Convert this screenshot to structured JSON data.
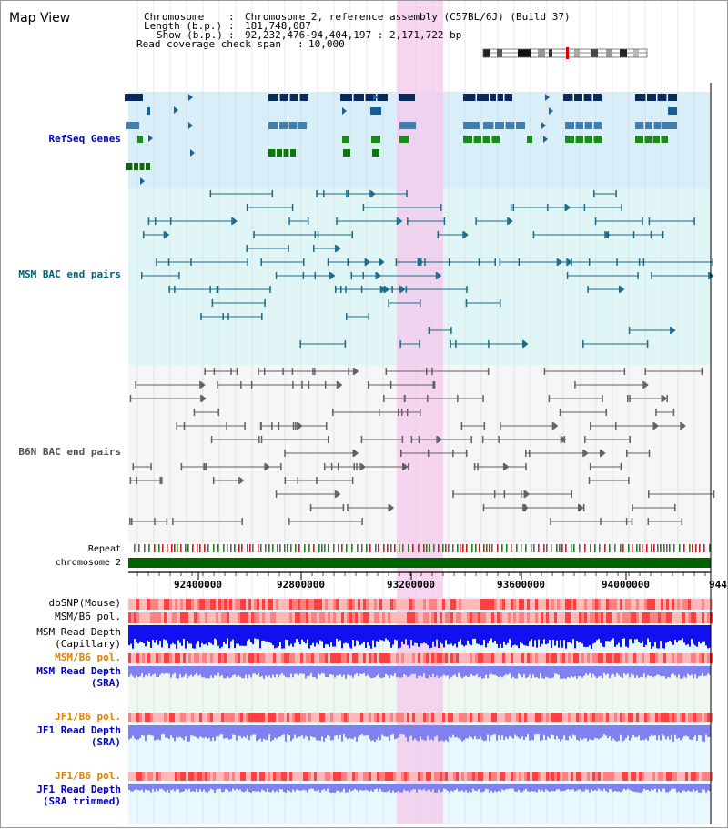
{
  "title": "Map View",
  "info": {
    "chromosome_label": "Chromosome",
    "chromosome_value": "Chromosome 2, reference assembly (C57BL/6J) (Build 37)",
    "length_label": "Length (b.p.)",
    "length_value": "181,748,087",
    "show_label": "Show (b.p.)",
    "show_value": "92,232,476-94,404,197 : 2,171,722 bp",
    "coverage_label": "Read coverage check span",
    "coverage_value": "10,000"
  },
  "tracks": {
    "refseq": "RefSeq Genes",
    "msm_bac": "MSM BAC end pairs",
    "b6n_bac": "B6N BAC end pairs",
    "repeat": "Repeat",
    "chromosome": "chromosome 2",
    "dbsnp": "dbSNP(Mouse)",
    "msm_b6_pol_1": "MSM/B6 pol.",
    "msm_read_depth_cap_1": "MSM Read Depth",
    "msm_read_depth_cap_2": "(Capillary)",
    "msm_b6_pol_2": "MSM/B6 pol.",
    "msm_read_depth_sra_1": "MSM Read Depth",
    "msm_read_depth_sra_2": "(SRA)",
    "jf1_b6_pol_1": "JF1/B6 pol.",
    "jf1_read_depth_1": "JF1 Read Depth",
    "jf1_read_depth_2": "(SRA)",
    "jf1_b6_pol_2": "JF1/B6 pol.",
    "jf1_read_depth_tr_1": "JF1 Read Depth",
    "jf1_read_depth_tr_2": "(SRA trimmed)"
  },
  "axis_ticks": [
    "92400000",
    "92800000",
    "93200000",
    "93600000",
    "94000000",
    "944"
  ],
  "colors": {
    "refseq_bg": "#d8eef8",
    "msm_bg": "#e0f6f6",
    "b6n_bg": "#f6f6f8",
    "highlight": "#f6c8ec",
    "refseq_label": "#0000c0",
    "msm_label": "#006080",
    "b6n_label": "#505050",
    "pol_label_orange": "#e08000",
    "depth_label_blue": "#0000c0",
    "chromosome_green": "#006400",
    "depth_blue": "#1010f0",
    "depth_light": "#8080f0"
  }
}
